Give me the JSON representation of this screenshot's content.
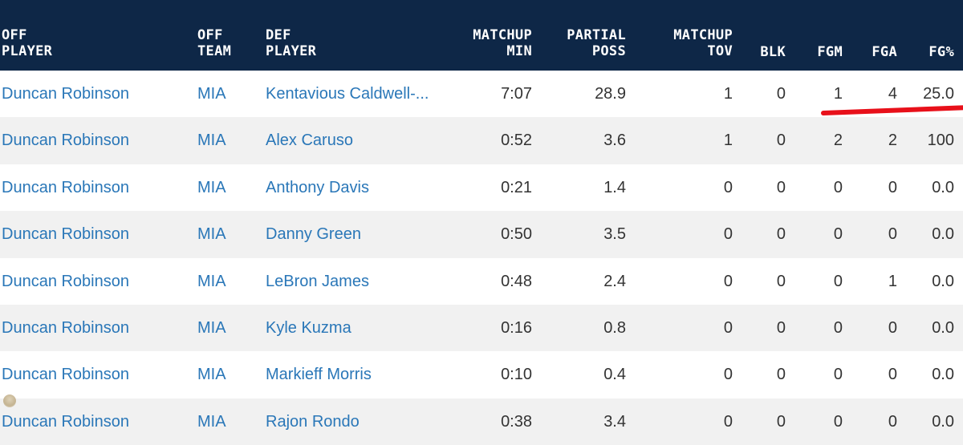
{
  "table": {
    "headers": {
      "off_player": "OFF\nPLAYER",
      "off_team": "OFF\nTEAM",
      "def_player": "DEF\nPLAYER",
      "matchup_min": "MATCHUP\nMIN",
      "partial_poss": "PARTIAL\nPOSS",
      "matchup_tov": "MATCHUP\nTOV",
      "blk": "BLK",
      "fgm": "FGM",
      "fga": "FGA",
      "fg_pct": "FG%"
    },
    "rows": [
      {
        "off": "Duncan Robinson",
        "team": "MIA",
        "def": "Kentavious Caldwell-...",
        "min": "7:07",
        "poss": "28.9",
        "tov": "1",
        "blk": "0",
        "fgm": "1",
        "fga": "4",
        "fgp": "25.0"
      },
      {
        "off": "Duncan Robinson",
        "team": "MIA",
        "def": "Alex Caruso",
        "min": "0:52",
        "poss": "3.6",
        "tov": "1",
        "blk": "0",
        "fgm": "2",
        "fga": "2",
        "fgp": "100"
      },
      {
        "off": "Duncan Robinson",
        "team": "MIA",
        "def": "Anthony Davis",
        "min": "0:21",
        "poss": "1.4",
        "tov": "0",
        "blk": "0",
        "fgm": "0",
        "fga": "0",
        "fgp": "0.0"
      },
      {
        "off": "Duncan Robinson",
        "team": "MIA",
        "def": "Danny Green",
        "min": "0:50",
        "poss": "3.5",
        "tov": "0",
        "blk": "0",
        "fgm": "0",
        "fga": "0",
        "fgp": "0.0"
      },
      {
        "off": "Duncan Robinson",
        "team": "MIA",
        "def": "LeBron James",
        "min": "0:48",
        "poss": "2.4",
        "tov": "0",
        "blk": "0",
        "fgm": "0",
        "fga": "1",
        "fgp": "0.0"
      },
      {
        "off": "Duncan Robinson",
        "team": "MIA",
        "def": "Kyle Kuzma",
        "min": "0:16",
        "poss": "0.8",
        "tov": "0",
        "blk": "0",
        "fgm": "0",
        "fga": "0",
        "fgp": "0.0"
      },
      {
        "off": "Duncan Robinson",
        "team": "MIA",
        "def": "Markieff Morris",
        "min": "0:10",
        "poss": "0.4",
        "tov": "0",
        "blk": "0",
        "fgm": "0",
        "fga": "0",
        "fgp": "0.0"
      },
      {
        "off": "Duncan Robinson",
        "team": "MIA",
        "def": "Rajon Rondo",
        "min": "0:38",
        "poss": "3.4",
        "tov": "0",
        "blk": "0",
        "fgm": "0",
        "fga": "0",
        "fgp": "0.0"
      }
    ]
  },
  "colors": {
    "header_bg": "#0e2747",
    "link": "#2a77b8",
    "annotation": "#e8101a"
  }
}
